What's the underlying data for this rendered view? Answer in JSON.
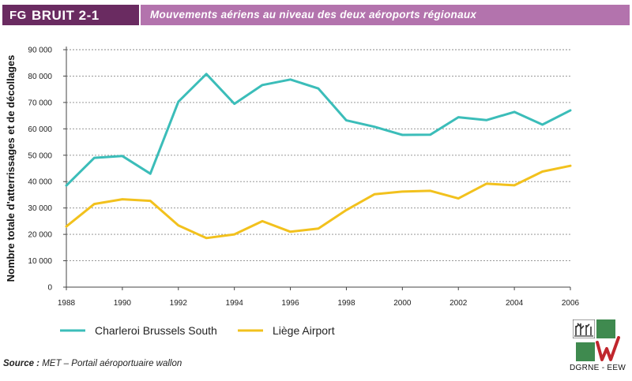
{
  "header": {
    "fig_prefix": "FG",
    "fig_code": "BRUIT 2-1",
    "title": "Mouvements aériens au niveau des deux aéroports régionaux"
  },
  "chart_data": {
    "type": "line",
    "title": "Mouvements aériens au niveau des deux aéroports régionaux",
    "xlabel": "",
    "ylabel": "Nombre totale d'atterrissages et de décollages",
    "x": [
      1988,
      1989,
      1990,
      1991,
      1992,
      1993,
      1994,
      1995,
      1996,
      1997,
      1998,
      1999,
      2000,
      2001,
      2002,
      2003,
      2004,
      2005,
      2006
    ],
    "xticks": [
      "1988",
      "1990",
      "1992",
      "1994",
      "1996",
      "1998",
      "2000",
      "2002",
      "2004",
      "2006"
    ],
    "xlim": [
      1988,
      2006
    ],
    "ylim": [
      0,
      90000
    ],
    "yticks": [
      "0",
      "10 000",
      "20 000",
      "30 000",
      "40 000",
      "50 000",
      "60 000",
      "70 000",
      "80 000",
      "90 000"
    ],
    "grid": "horizontal dashed",
    "legend_position": "bottom-left",
    "series": [
      {
        "name": "Charleroi Brussels South",
        "color": "#3bbdb9",
        "values": [
          38500,
          49000,
          49700,
          43000,
          70300,
          80800,
          69500,
          76600,
          78700,
          75300,
          63200,
          60800,
          57700,
          57800,
          64400,
          63300,
          66400,
          61600,
          67000
        ]
      },
      {
        "name": "Liège Airport",
        "color": "#f2c11d",
        "values": [
          23000,
          31500,
          33300,
          32700,
          23400,
          18600,
          20000,
          25000,
          21000,
          22200,
          29200,
          35200,
          36200,
          36500,
          33600,
          39200,
          38600,
          43800,
          46000
        ]
      }
    ]
  },
  "source": {
    "label": "Source :",
    "text": " MET – Portail aéroportuaire wallon"
  },
  "logo": {
    "caption": "DGRNE - EEW",
    "color": "#3f8a4f",
    "accent": "#c0262d"
  }
}
